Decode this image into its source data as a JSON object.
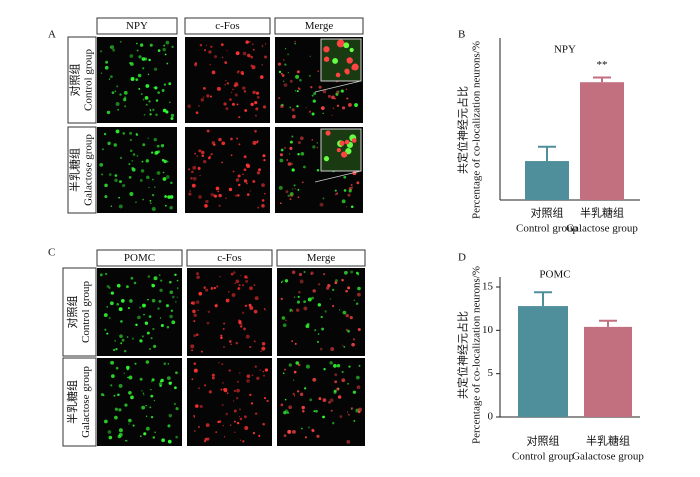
{
  "figure": {
    "panels": [
      {
        "letter": "A",
        "columns": [
          "NPY",
          "c-Fos",
          "Merge"
        ],
        "rows": [
          [
            "对照组",
            "Control group"
          ],
          [
            "半乳糖组",
            "Galactose group"
          ]
        ]
      },
      {
        "letter": "C",
        "columns": [
          "POMC",
          "c-Fos",
          "Merge"
        ],
        "rows": [
          [
            "对照组",
            "Control group"
          ],
          [
            "半乳糖组",
            "Galactose group"
          ]
        ]
      }
    ]
  },
  "chart_data": [
    {
      "type": "bar",
      "letter": "B",
      "title": "NPY",
      "ylabel": [
        "共定位神经元占比",
        "Percentage of co-localization neurons/%"
      ],
      "categories": [
        "对照组",
        "半乳糖组"
      ],
      "category_subtitles": [
        "Control group",
        "Galactose group"
      ],
      "values": [
        20.5,
        62
      ],
      "errors": [
        7.5,
        2.5
      ],
      "colors": [
        "#4e8f9b",
        "#c26f80"
      ],
      "annotations": [
        null,
        "**"
      ],
      "ylim": [
        0,
        80
      ]
    },
    {
      "type": "bar",
      "letter": "D",
      "title": "POMC",
      "ylabel": [
        "共定位神经元占比",
        "Percentage of co-localization neurons/%"
      ],
      "categories": [
        "对照组",
        "半乳糖组"
      ],
      "category_subtitles": [
        "Control group",
        "Galactose group"
      ],
      "values": [
        12.8,
        10.4
      ],
      "errors": [
        1.6,
        0.7
      ],
      "colors": [
        "#4e8f9b",
        "#c26f80"
      ],
      "ylim": [
        0,
        15
      ],
      "yticks": [
        0,
        5,
        10,
        15
      ]
    }
  ]
}
